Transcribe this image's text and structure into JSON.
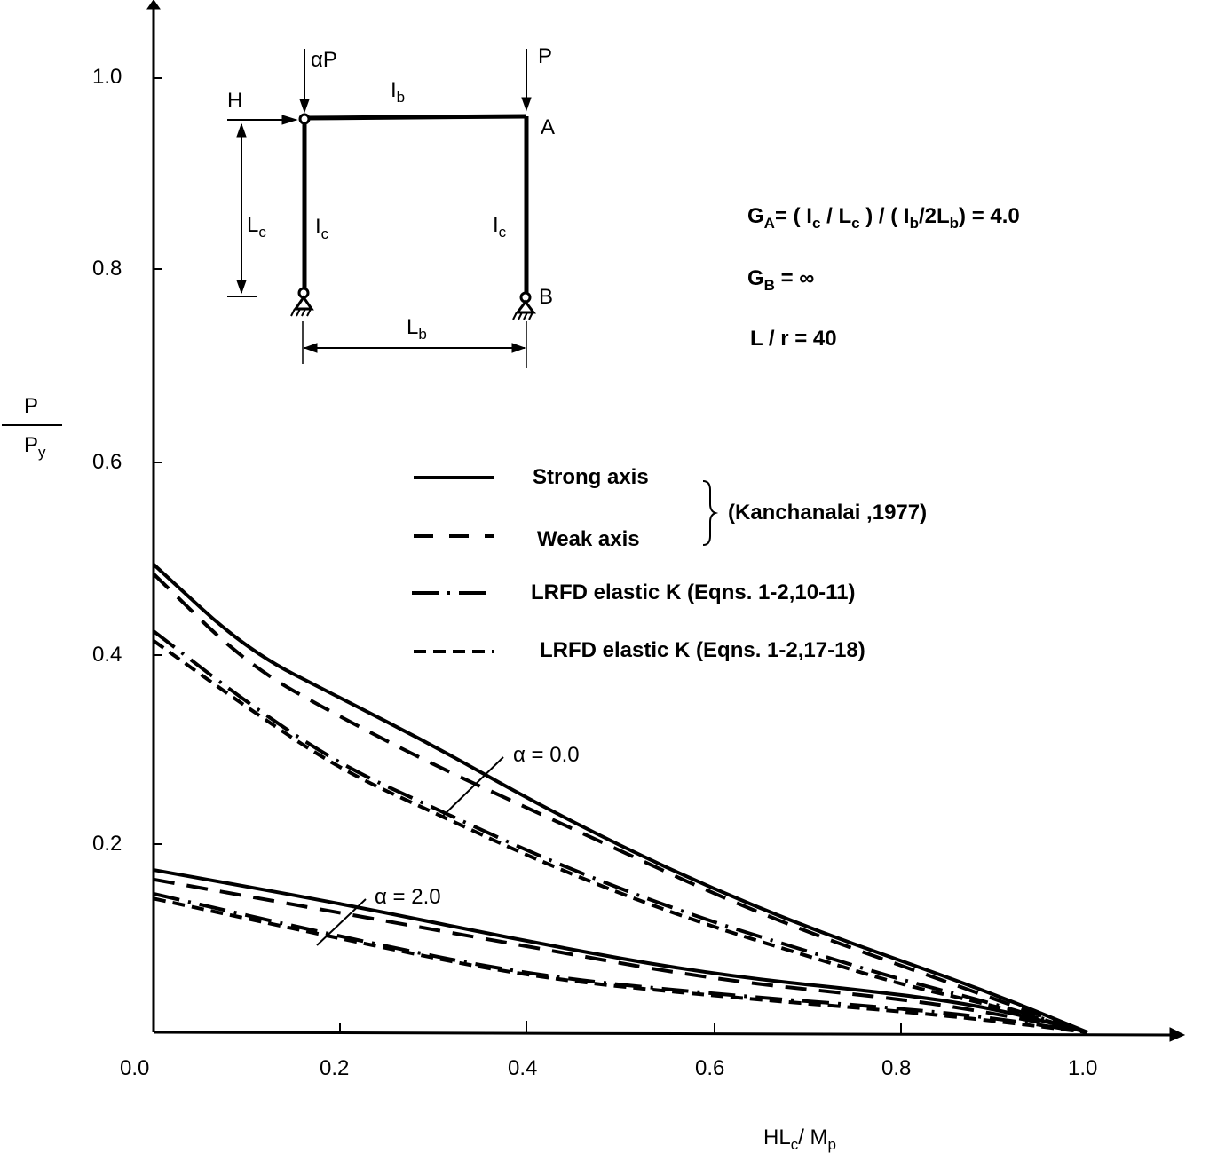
{
  "chart_data": {
    "type": "line",
    "title": "",
    "xlabel": "HLc/Mp",
    "ylabel": "P/Py",
    "xlim": [
      0,
      1.1
    ],
    "ylim": [
      0,
      1.07
    ],
    "x_ticks": [
      "0.0",
      "0.2",
      "0.4",
      "0.6",
      "0.8",
      "1.0"
    ],
    "y_ticks": [
      "0.2",
      "0.4",
      "0.6",
      "0.8",
      "1.0"
    ],
    "grid": false,
    "legend_position": "center-right",
    "legend": [
      {
        "style": "solid",
        "label": "Strong axis"
      },
      {
        "style": "long-dash",
        "label": "Weak axis"
      },
      {
        "style": "dash-dot",
        "label": "LRFD elastic K (Eqns. 1-2,10-11)"
      },
      {
        "style": "short-dash",
        "label": "LRFD elastic K (Eqns. 1-2,17-18)"
      }
    ],
    "legend_group_note": "(Kanchanalai ,1977)",
    "annotations": [
      "α = 0.0",
      "α = 2.0"
    ],
    "series": [
      {
        "name": "Strong axis, α=0.0",
        "style": "solid",
        "x": [
          0,
          0.1,
          0.2,
          0.3,
          0.4,
          0.5,
          0.6,
          0.7,
          0.8,
          0.9,
          1.0
        ],
        "y": [
          0.49,
          0.4,
          0.35,
          0.3,
          0.245,
          0.195,
          0.15,
          0.11,
          0.075,
          0.04,
          0
        ]
      },
      {
        "name": "Weak axis, α=0.0",
        "style": "long-dash",
        "x": [
          0,
          0.1,
          0.2,
          0.3,
          0.4,
          0.5,
          0.6,
          0.7,
          0.8,
          0.9,
          1.0
        ],
        "y": [
          0.48,
          0.385,
          0.33,
          0.28,
          0.235,
          0.19,
          0.145,
          0.105,
          0.07,
          0.035,
          0
        ]
      },
      {
        "name": "LRFD elastic K (Eqns. 1-2,10-11), α=0.0",
        "style": "dash-dot",
        "x": [
          0,
          0.1,
          0.2,
          0.3,
          0.4,
          0.5,
          0.6,
          0.7,
          0.8,
          0.9,
          1.0
        ],
        "y": [
          0.42,
          0.345,
          0.28,
          0.235,
          0.19,
          0.15,
          0.115,
          0.085,
          0.055,
          0.03,
          0
        ]
      },
      {
        "name": "LRFD elastic K (Eqns. 1-2,17-18), α=0.0",
        "style": "short-dash",
        "x": [
          0,
          0.1,
          0.2,
          0.3,
          0.4,
          0.5,
          0.6,
          0.7,
          0.8,
          0.9,
          1.0
        ],
        "y": [
          0.41,
          0.34,
          0.275,
          0.23,
          0.185,
          0.145,
          0.11,
          0.08,
          0.05,
          0.028,
          0
        ]
      },
      {
        "name": "Strong axis, α=2.0",
        "style": "solid",
        "x": [
          0,
          0.2,
          0.4,
          0.6,
          0.8,
          0.9,
          1.0
        ],
        "y": [
          0.17,
          0.135,
          0.095,
          0.06,
          0.04,
          0.025,
          0
        ]
      },
      {
        "name": "Weak axis, α=2.0",
        "style": "long-dash",
        "x": [
          0,
          0.2,
          0.4,
          0.6,
          0.8,
          0.9,
          1.0
        ],
        "y": [
          0.16,
          0.125,
          0.09,
          0.055,
          0.035,
          0.02,
          0
        ]
      },
      {
        "name": "LRFD elastic K (Eqns. 1-2,10-11), α=2.0",
        "style": "dash-dot",
        "x": [
          0,
          0.2,
          0.4,
          0.6,
          0.8,
          0.9,
          1.0
        ],
        "y": [
          0.145,
          0.1,
          0.06,
          0.04,
          0.025,
          0.015,
          0
        ]
      },
      {
        "name": "LRFD elastic K (Eqns. 1-2,17-18), α=2.0",
        "style": "short-dash",
        "x": [
          0,
          0.2,
          0.4,
          0.6,
          0.8,
          0.9,
          1.0
        ],
        "y": [
          0.14,
          0.098,
          0.058,
          0.038,
          0.022,
          0.012,
          0
        ]
      }
    ]
  },
  "frame_diagram": {
    "loads": {
      "left_load": "αP",
      "right_load": "P",
      "horizontal_load": "H"
    },
    "members": {
      "beam": "I",
      "beam_sub": "b",
      "left_column": "I",
      "left_column_sub": "c",
      "right_column": "I",
      "right_column_sub": "c"
    },
    "dimensions": {
      "height": "L",
      "height_sub": "c",
      "span": "L",
      "span_sub": "b"
    },
    "nodes": {
      "top_right": "A",
      "bottom_right": "B"
    }
  },
  "parameters": {
    "ga_line": "= ( Ic / Lc ) / ( Ib/2Lb )  = 4.0",
    "ga_prefix": "G",
    "ga_sub": "A",
    "ga_rest_1": "= ( I",
    "ga_rest_2": "c",
    "ga_rest_3": " / L",
    "ga_rest_4": "c",
    "ga_rest_5": " ) / ( I",
    "ga_rest_6": "b",
    "ga_rest_7": "/2L",
    "ga_rest_8": "b",
    "ga_rest_9": ")  = 4.0",
    "gb_prefix": "G",
    "gb_sub": "B",
    "gb_rest": "=  ∞",
    "lr": "L  /  r  =  40"
  },
  "axis": {
    "y_num": "P",
    "y_den": "P",
    "y_den_sub": "y",
    "x_label_1": "HL",
    "x_label_sub1": "c",
    "x_label_2": "/  M",
    "x_label_sub2": "p"
  },
  "legend": {
    "item1": "Strong axis",
    "item2": "Weak axis",
    "item3": "LRFD elastic K (Eqns. 1-2,10-11)",
    "item4": "LRFD elastic K (Eqns. 1-2,17-18)",
    "group": "(Kanchanalai ,1977)"
  },
  "annotations": {
    "alpha0": "α = 0.0",
    "alpha2": "α = 2.0"
  },
  "ticks": {
    "x": [
      "0.0",
      "0.2",
      "0.4",
      "0.6",
      "0.8",
      "1.0"
    ],
    "y": [
      "1.0",
      "0.8",
      "0.6",
      "0.4",
      "0.2"
    ]
  }
}
